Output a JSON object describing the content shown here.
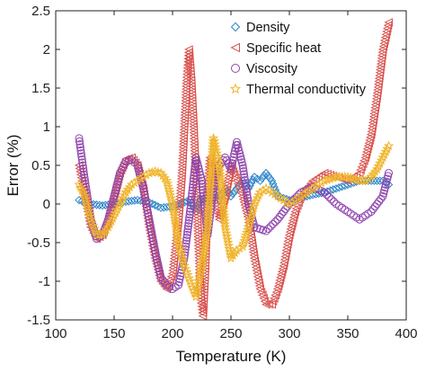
{
  "chart_data": {
    "type": "scatter",
    "title": "",
    "xlabel": "Temperature (K)",
    "ylabel": "Error (%)",
    "xlim": [
      100,
      400
    ],
    "ylim": [
      -1.5,
      2.5
    ],
    "xticks": [
      "100",
      "150",
      "200",
      "250",
      "300",
      "350",
      "400"
    ],
    "yticks": [
      "2.5",
      "2",
      "1.5",
      "1",
      "0.5",
      "0",
      "-0.5",
      "-1",
      "-1.5"
    ],
    "grid": false,
    "legend_position": "top-right",
    "series": [
      {
        "name": "Density",
        "marker": "diamond",
        "color": "#2e86c8",
        "x": [
          120,
          130,
          140,
          150,
          160,
          170,
          180,
          190,
          200,
          210,
          215,
          220,
          225,
          230,
          235,
          240,
          245,
          250,
          255,
          260,
          265,
          270,
          275,
          280,
          285,
          290,
          300,
          310,
          320,
          330,
          340,
          350,
          360,
          370,
          380,
          385
        ],
        "y": [
          0.05,
          0.0,
          -0.02,
          0.0,
          0.03,
          0.05,
          0.02,
          -0.05,
          -0.03,
          0.02,
          0.05,
          -0.1,
          0.1,
          0.0,
          0.15,
          0.05,
          0.2,
          0.1,
          0.2,
          0.3,
          0.2,
          0.35,
          0.3,
          0.4,
          0.3,
          0.1,
          0.05,
          0.08,
          0.12,
          0.15,
          0.2,
          0.25,
          0.3,
          0.3,
          0.3,
          0.25
        ]
      },
      {
        "name": "Specific heat",
        "marker": "triangle-left",
        "color": "#d9534f",
        "x": [
          120,
          125,
          130,
          135,
          140,
          145,
          150,
          155,
          160,
          165,
          170,
          175,
          180,
          185,
          190,
          195,
          200,
          205,
          208,
          210,
          212,
          214,
          216,
          218,
          220,
          222,
          224,
          226,
          228,
          230,
          232,
          235,
          240,
          245,
          250,
          255,
          260,
          265,
          270,
          275,
          280,
          285,
          290,
          295,
          300,
          305,
          310,
          320,
          330,
          340,
          350,
          360,
          365,
          370,
          375,
          380,
          385
        ],
        "y": [
          0.5,
          0.1,
          -0.3,
          -0.45,
          -0.4,
          -0.2,
          0.1,
          0.4,
          0.58,
          0.6,
          0.5,
          0.2,
          -0.3,
          -0.7,
          -1.0,
          -1.1,
          -0.9,
          -0.2,
          0.4,
          1.0,
          1.6,
          2.0,
          1.6,
          1.0,
          0.3,
          -0.5,
          -1.2,
          -1.45,
          -0.8,
          0.2,
          0.6,
          0.3,
          -0.2,
          0.1,
          0.5,
          0.3,
          0.1,
          -0.2,
          -0.7,
          -1.1,
          -1.3,
          -1.3,
          -1.1,
          -0.8,
          -0.4,
          -0.1,
          0.1,
          0.3,
          0.4,
          0.35,
          0.3,
          0.4,
          0.6,
          0.9,
          1.4,
          2.0,
          2.35
        ]
      },
      {
        "name": "Viscosity",
        "marker": "circle",
        "color": "#8e44ad",
        "x": [
          120,
          125,
          130,
          135,
          140,
          145,
          150,
          155,
          160,
          165,
          170,
          175,
          180,
          185,
          190,
          195,
          200,
          205,
          210,
          215,
          220,
          225,
          230,
          235,
          240,
          245,
          250,
          255,
          260,
          265,
          270,
          280,
          290,
          300,
          310,
          320,
          330,
          340,
          350,
          360,
          370,
          380,
          385
        ],
        "y": [
          0.85,
          0.3,
          -0.2,
          -0.45,
          -0.4,
          -0.2,
          0.1,
          0.4,
          0.55,
          0.57,
          0.5,
          0.2,
          -0.2,
          -0.6,
          -0.95,
          -1.05,
          -1.1,
          -1.05,
          -0.7,
          -0.1,
          0.6,
          0.3,
          -0.4,
          0.2,
          0.5,
          0.6,
          0.45,
          0.8,
          0.5,
          0.0,
          -0.3,
          -0.35,
          -0.2,
          0.0,
          0.15,
          0.22,
          0.15,
          0.0,
          -0.1,
          -0.2,
          -0.1,
          0.1,
          0.4
        ]
      },
      {
        "name": "Thermal conductivity",
        "marker": "star",
        "color": "#f0b429",
        "x": [
          120,
          125,
          130,
          135,
          140,
          145,
          150,
          155,
          160,
          165,
          170,
          175,
          180,
          185,
          190,
          195,
          200,
          205,
          210,
          215,
          220,
          225,
          230,
          235,
          240,
          245,
          250,
          255,
          260,
          265,
          270,
          275,
          280,
          290,
          300,
          310,
          320,
          330,
          340,
          350,
          360,
          365,
          370,
          375,
          380,
          385
        ],
        "y": [
          0.25,
          0.1,
          -0.2,
          -0.4,
          -0.4,
          -0.3,
          -0.15,
          0.0,
          0.15,
          0.25,
          0.3,
          0.35,
          0.4,
          0.42,
          0.4,
          0.3,
          0.0,
          -0.5,
          -0.8,
          -1.0,
          -1.2,
          -0.8,
          -0.3,
          0.85,
          0.5,
          -0.3,
          -0.7,
          -0.6,
          -0.55,
          -0.3,
          0.0,
          0.15,
          0.2,
          0.1,
          0.0,
          0.1,
          0.2,
          0.3,
          0.35,
          0.35,
          0.3,
          0.3,
          0.35,
          0.45,
          0.6,
          0.75
        ]
      }
    ]
  }
}
